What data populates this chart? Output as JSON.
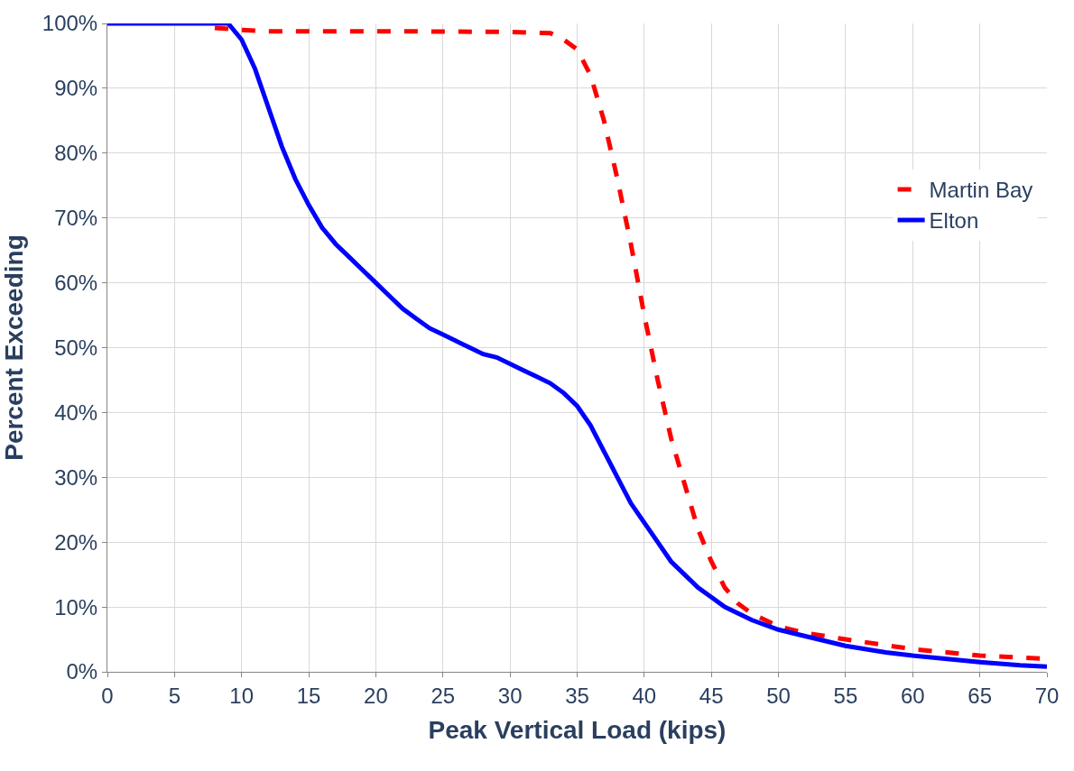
{
  "chart_data": {
    "type": "line",
    "xlabel": "Peak Vertical Load (kips)",
    "ylabel": "Percent Exceeding",
    "xlim": [
      0,
      70
    ],
    "xticks": [
      0,
      5,
      10,
      15,
      20,
      25,
      30,
      35,
      40,
      45,
      50,
      55,
      60,
      65,
      70
    ],
    "ylim": [
      0,
      100
    ],
    "yticks": [
      {
        "value": 0,
        "label": "0%"
      },
      {
        "value": 10,
        "label": "10%"
      },
      {
        "value": 20,
        "label": "20%"
      },
      {
        "value": 30,
        "label": "30%"
      },
      {
        "value": 40,
        "label": "40%"
      },
      {
        "value": 50,
        "label": "50%"
      },
      {
        "value": 60,
        "label": "60%"
      },
      {
        "value": 70,
        "label": "70%"
      },
      {
        "value": 80,
        "label": "80%"
      },
      {
        "value": 90,
        "label": "90%"
      },
      {
        "value": 100,
        "label": "100%"
      }
    ],
    "grid": true,
    "legend": "right",
    "marker": "none",
    "series": [
      {
        "name": "Martin Bay",
        "color": "#ff0000",
        "line_style": "dashed",
        "x": [
          8,
          10,
          12,
          20,
          30,
          33,
          34,
          35,
          36,
          37,
          38,
          39,
          40,
          41,
          42,
          43,
          44,
          45,
          46,
          47,
          48,
          49,
          50,
          52,
          55,
          60,
          65,
          70
        ],
        "values": [
          99.3,
          99,
          98.8,
          98.8,
          98.7,
          98.5,
          97.5,
          96,
          92,
          85,
          76,
          66,
          55,
          45,
          36,
          29,
          22,
          17,
          13,
          10.5,
          9,
          8,
          7,
          6,
          5,
          3.5,
          2.5,
          2
        ]
      },
      {
        "name": "Elton",
        "color": "#0000ff",
        "line_style": "solid",
        "x": [
          0,
          9,
          10,
          11,
          12,
          13,
          14,
          15,
          16,
          17,
          18,
          19,
          20,
          21,
          22,
          23,
          24,
          25,
          26,
          27,
          28,
          29,
          30,
          31,
          32,
          33,
          34,
          35,
          36,
          37,
          38,
          39,
          40,
          41,
          42,
          43,
          44,
          45,
          46,
          47,
          48,
          50,
          52,
          55,
          58,
          60,
          65,
          68,
          70
        ],
        "values": [
          100,
          100,
          97.5,
          93,
          87,
          81,
          76,
          72,
          68.5,
          66,
          64,
          62,
          60,
          58,
          56,
          54.5,
          53,
          52,
          51,
          50,
          49,
          48.5,
          47.5,
          46.5,
          45.5,
          44.5,
          43,
          41,
          38,
          34,
          30,
          26,
          23,
          20,
          17,
          15,
          13,
          11.5,
          10,
          9,
          8,
          6.5,
          5.5,
          4,
          3,
          2.5,
          1.5,
          1,
          0.8
        ]
      }
    ]
  }
}
